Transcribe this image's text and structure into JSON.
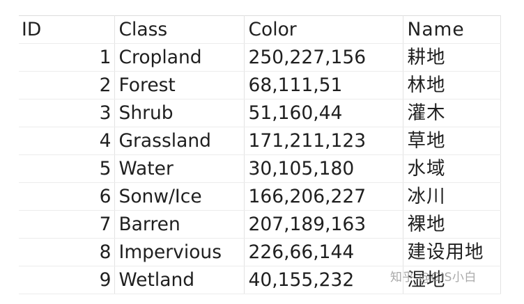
{
  "table": {
    "headers": {
      "id": "ID",
      "class": "Class",
      "color": "Color",
      "name": "Name"
    },
    "rows": [
      {
        "id": "1",
        "class": "Cropland",
        "color": "250,227,156",
        "name": "耕地"
      },
      {
        "id": "2",
        "class": "Forest",
        "color": "68,111,51",
        "name": "林地"
      },
      {
        "id": "3",
        "class": "Shrub",
        "color": "51,160,44",
        "name": "灌木"
      },
      {
        "id": "4",
        "class": "Grassland",
        "color": "171,211,123",
        "name": "草地"
      },
      {
        "id": "5",
        "class": "Water",
        "color": "30,105,180",
        "name": "水域"
      },
      {
        "id": "6",
        "class": "Sonw/Ice",
        "color": "166,206,227",
        "name": "冰川"
      },
      {
        "id": "7",
        "class": "Barren",
        "color": "207,189,163",
        "name": "裸地"
      },
      {
        "id": "8",
        "class": "Impervious",
        "color": "226,66,144",
        "name": "建设用地"
      },
      {
        "id": "9",
        "class": "Wetland",
        "color": "40,155,232",
        "name": "湿地"
      }
    ]
  },
  "watermark": {
    "text": "知乎 @GIS小白"
  }
}
